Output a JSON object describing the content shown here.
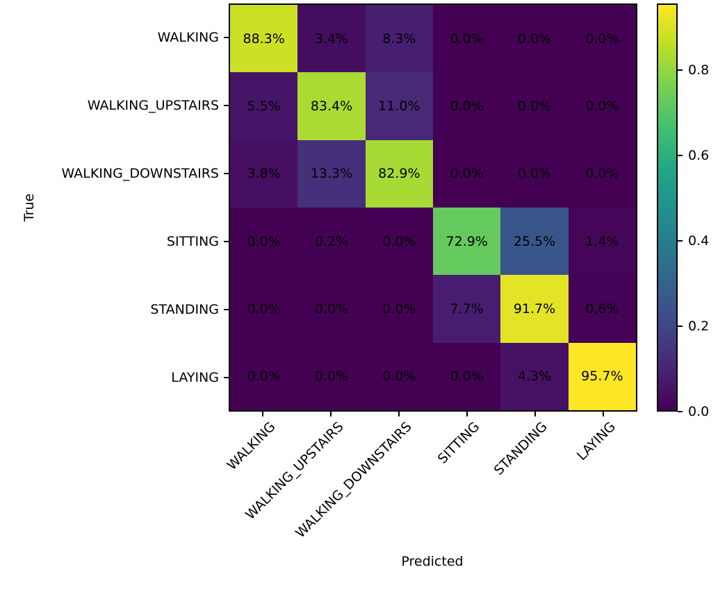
{
  "chart_data": {
    "type": "heatmap",
    "title": "",
    "xlabel": "Predicted",
    "ylabel": "True",
    "x_categories": [
      "WALKING",
      "WALKING_UPSTAIRS",
      "WALKING_DOWNSTAIRS",
      "SITTING",
      "STANDING",
      "LAYING"
    ],
    "y_categories": [
      "WALKING",
      "WALKING_UPSTAIRS",
      "WALKING_DOWNSTAIRS",
      "SITTING",
      "STANDING",
      "LAYING"
    ],
    "values_percent": [
      [
        88.3,
        3.4,
        8.3,
        0.0,
        0.0,
        0.0
      ],
      [
        5.5,
        83.4,
        11.0,
        0.0,
        0.0,
        0.0
      ],
      [
        3.8,
        13.3,
        82.9,
        0.0,
        0.0,
        0.0
      ],
      [
        0.0,
        0.2,
        0.0,
        72.9,
        25.5,
        1.4
      ],
      [
        0.0,
        0.0,
        0.0,
        7.7,
        91.7,
        0.6
      ],
      [
        0.0,
        0.0,
        0.0,
        0.0,
        4.3,
        95.7
      ]
    ],
    "cell_label_suffix": "%",
    "annotation_color": "#000000",
    "colormap": "viridis",
    "colormap_stops": [
      "#440154",
      "#482475",
      "#414487",
      "#355f8d",
      "#2a788e",
      "#21918c",
      "#22a884",
      "#44bf70",
      "#7ad151",
      "#bddf26",
      "#fde725"
    ],
    "vmin": 0.0,
    "vmax": 0.957,
    "colorbar_ticks": [
      {
        "label": "0.0",
        "value": 0.0
      },
      {
        "label": "0.2",
        "value": 0.2
      },
      {
        "label": "0.4",
        "value": 0.4
      },
      {
        "label": "0.6",
        "value": 0.6
      },
      {
        "label": "0.8",
        "value": 0.8
      }
    ],
    "grid": false,
    "legend": "colorbar-right",
    "x_tick_rotation_deg": 45
  }
}
